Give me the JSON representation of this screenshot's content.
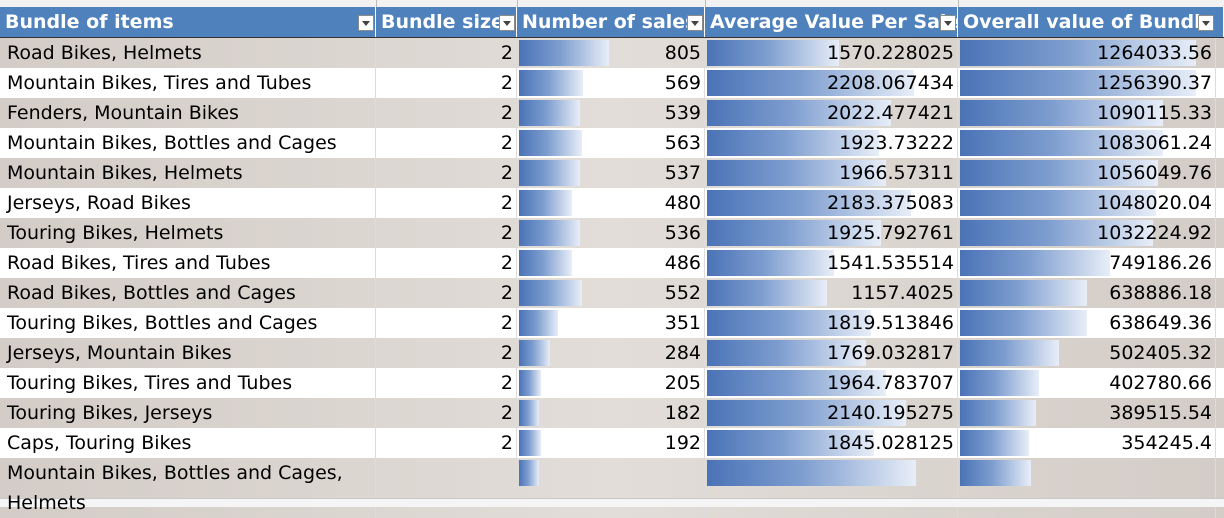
{
  "table": {
    "headers": [
      "Bundle of items",
      "Bundle size",
      "Number of sales",
      "Average Value Per Sale",
      "Overall value of Bundle"
    ],
    "rows": [
      {
        "items": "Road Bikes, Helmets",
        "size": "2",
        "sales": "805",
        "avg": "1570.228025",
        "overall": "1264033.56",
        "sales_fill": 0.49,
        "avg_fill": 0.53,
        "overall_fill": 0.93
      },
      {
        "items": "Mountain Bikes, Tires and Tubes",
        "size": "2",
        "sales": "569",
        "avg": "2208.067434",
        "overall": "1256390.37",
        "sales_fill": 0.35,
        "avg_fill": 0.83,
        "overall_fill": 0.93
      },
      {
        "items": "Fenders, Mountain Bikes",
        "size": "2",
        "sales": "539",
        "avg": "2022.477421",
        "overall": "1090115.33",
        "sales_fill": 0.33,
        "avg_fill": 0.74,
        "overall_fill": 0.8
      },
      {
        "items": "Mountain Bikes, Bottles and Cages",
        "size": "2",
        "sales": "563",
        "avg": "1923.73222",
        "overall": "1083061.24",
        "sales_fill": 0.34,
        "avg_fill": 0.69,
        "overall_fill": 0.8
      },
      {
        "items": "Mountain Bikes, Helmets",
        "size": "2",
        "sales": "537",
        "avg": "1966.57311",
        "overall": "1056049.76",
        "sales_fill": 0.33,
        "avg_fill": 0.72,
        "overall_fill": 0.78
      },
      {
        "items": "Jerseys, Road Bikes",
        "size": "2",
        "sales": "480",
        "avg": "2183.375083",
        "overall": "1048020.04",
        "sales_fill": 0.29,
        "avg_fill": 0.82,
        "overall_fill": 0.77
      },
      {
        "items": "Touring Bikes, Helmets",
        "size": "2",
        "sales": "536",
        "avg": "1925.792761",
        "overall": "1032224.92",
        "sales_fill": 0.33,
        "avg_fill": 0.7,
        "overall_fill": 0.76
      },
      {
        "items": "Road Bikes, Tires and Tubes",
        "size": "2",
        "sales": "486",
        "avg": "1541.535514",
        "overall": "749186.26",
        "sales_fill": 0.29,
        "avg_fill": 0.51,
        "overall_fill": 0.59
      },
      {
        "items": "Road Bikes, Bottles and Cages",
        "size": "2",
        "sales": "552",
        "avg": "1157.4025",
        "overall": "638886.18",
        "sales_fill": 0.34,
        "avg_fill": 0.48,
        "overall_fill": 0.5
      },
      {
        "items": "Touring Bikes, Bottles and Cages",
        "size": "2",
        "sales": "351",
        "avg": "1819.513846",
        "overall": "638649.36",
        "sales_fill": 0.21,
        "avg_fill": 0.66,
        "overall_fill": 0.5
      },
      {
        "items": "Jerseys, Mountain Bikes",
        "size": "2",
        "sales": "284",
        "avg": "1769.032817",
        "overall": "502405.32",
        "sales_fill": 0.17,
        "avg_fill": 0.64,
        "overall_fill": 0.39
      },
      {
        "items": "Touring Bikes, Tires and Tubes",
        "size": "2",
        "sales": "205",
        "avg": "1964.783707",
        "overall": "402780.66",
        "sales_fill": 0.12,
        "avg_fill": 0.72,
        "overall_fill": 0.31
      },
      {
        "items": "Touring Bikes, Jerseys",
        "size": "2",
        "sales": "182",
        "avg": "2140.195275",
        "overall": "389515.54",
        "sales_fill": 0.11,
        "avg_fill": 0.8,
        "overall_fill": 0.3
      },
      {
        "items": "Caps, Touring Bikes",
        "size": "2",
        "sales": "192",
        "avg": "1845.028125",
        "overall": "354245.4",
        "sales_fill": 0.12,
        "avg_fill": 0.67,
        "overall_fill": 0.27
      },
      {
        "items": "Mountain Bikes, Bottles and Cages, Helmets",
        "size": "",
        "sales": "",
        "avg": "",
        "overall": "",
        "sales_fill": 0.11,
        "avg_fill": 0.84,
        "overall_fill": 0.28
      }
    ]
  },
  "colors": {
    "header_bg": "#4f81bd",
    "header_text": "#ffffff",
    "banded_row": "#d9d3ce",
    "databar": "#5b7fc0"
  }
}
